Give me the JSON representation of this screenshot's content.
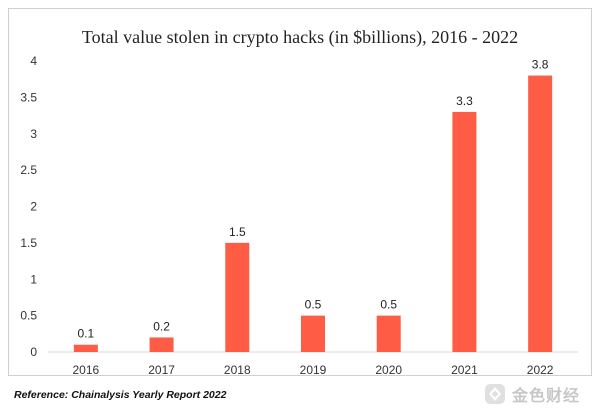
{
  "chart_data": {
    "type": "bar",
    "title": "Total value stolen in crypto hacks (in $billions), 2016 - 2022",
    "xlabel": "",
    "ylabel": "",
    "categories": [
      "2016",
      "2017",
      "2018",
      "2019",
      "2020",
      "2021",
      "2022"
    ],
    "values": [
      0.1,
      0.2,
      1.5,
      0.5,
      0.5,
      3.3,
      3.8
    ],
    "data_labels": [
      "0.1",
      "0.2",
      "1.5",
      "0.5",
      "0.5",
      "3.3",
      "3.8"
    ],
    "ylim": [
      0,
      4
    ],
    "yticks": [
      "0",
      "0.5",
      "1",
      "1.5",
      "2",
      "2.5",
      "3",
      "3.5",
      "4"
    ],
    "grid": false,
    "legend": "none",
    "bar_color": "#FF5C46"
  },
  "footer": {
    "reference": "Reference: Chainalysis Yearly Report 2022",
    "watermark_text": "金色财经"
  }
}
